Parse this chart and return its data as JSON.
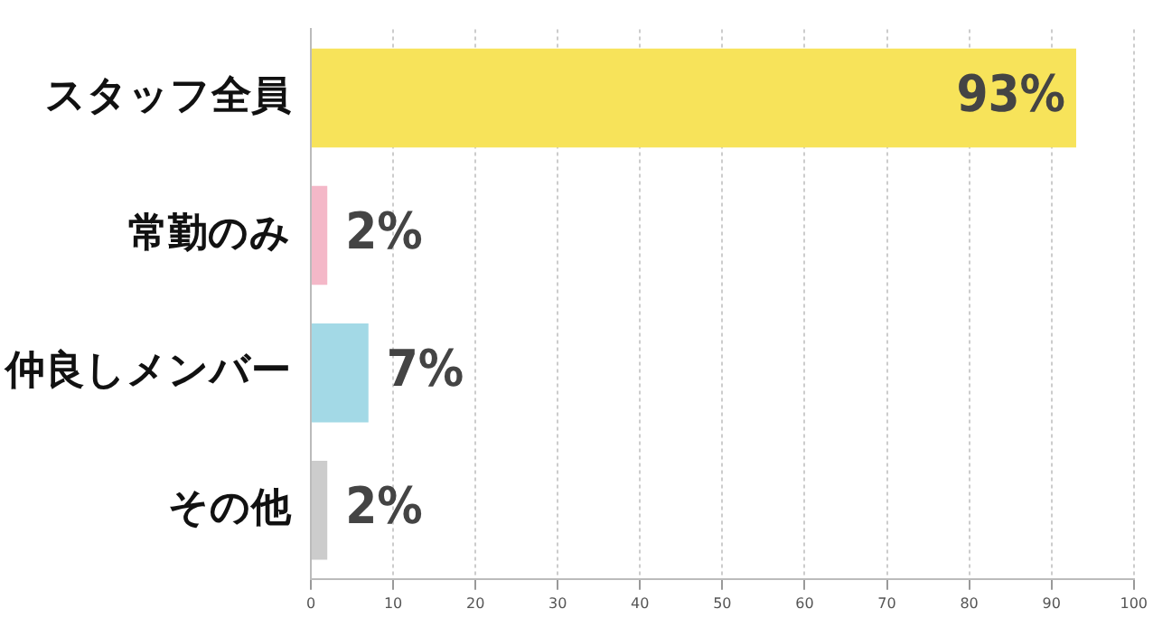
{
  "chart_data": {
    "type": "bar",
    "orientation": "horizontal",
    "categories": [
      "スタッフ全員",
      "常勤のみ",
      "仲良しメンバー",
      "その他"
    ],
    "values": [
      93,
      2,
      7,
      2
    ],
    "colors": [
      "#f7e35a",
      "#f4b8c8",
      "#a3d9e6",
      "#cccccc"
    ],
    "value_labels": [
      "93%",
      "2%",
      "7%",
      "2%"
    ],
    "xlim": [
      0,
      100
    ],
    "xticks": [
      0,
      10,
      20,
      30,
      40,
      50,
      60,
      70,
      80,
      90,
      100
    ],
    "grid": "x",
    "legend": false
  }
}
